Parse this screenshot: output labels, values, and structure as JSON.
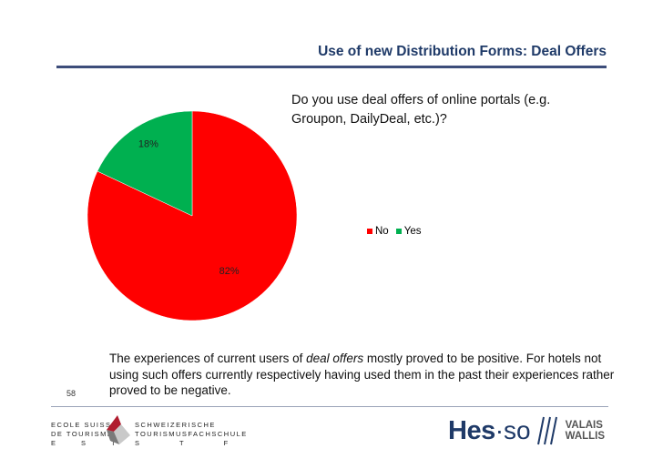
{
  "slide": {
    "title": "Use of new Distribution Forms: Deal Offers",
    "question": "Do you use deal offers of online portals (e.g. Groupon, DailyDeal, etc.)?",
    "body_part1": "The experiences of current users of ",
    "body_emphasis": "deal offers",
    "body_part2": " mostly proved to be positive. For hotels not using such offers currently respectively having used them in the past their experiences rather proved to be negative.",
    "page_number": "58"
  },
  "chart_data": {
    "type": "pie",
    "categories": [
      "No",
      "Yes"
    ],
    "values": [
      82,
      18
    ],
    "data_labels": [
      "82%",
      "18%"
    ],
    "colors": [
      "#ff0000",
      "#00b050"
    ],
    "legend_position": "right"
  },
  "footer": {
    "left_logo": {
      "line1": "ECOLE SUISSE",
      "line2": "DE TOURISME",
      "line3": "EST",
      "line4": "SCHWEIZERISCHE",
      "line5": "TOURISMUSFACHSCHULE",
      "line6": "STF"
    },
    "right_logo": {
      "hes": "Hes",
      "so": "·so",
      "valais": "VALAIS",
      "wallis": "WALLIS"
    }
  }
}
